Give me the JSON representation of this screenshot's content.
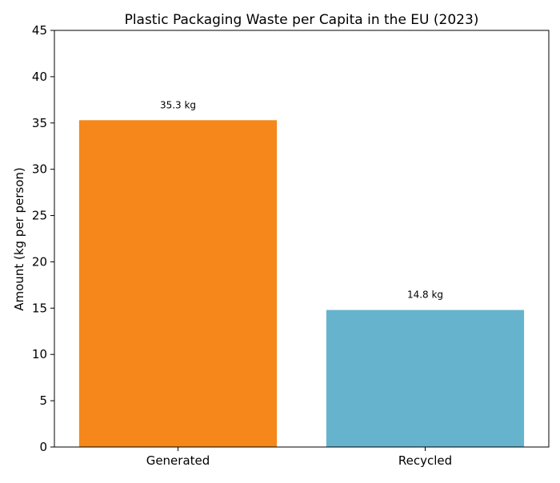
{
  "chart_data": {
    "type": "bar",
    "title": "Plastic Packaging Waste per Capita in the EU (2023)",
    "xlabel": "",
    "ylabel": "Amount (kg per person)",
    "categories": [
      "Generated",
      "Recycled"
    ],
    "values": [
      35.3,
      14.8
    ],
    "data_labels": [
      "35.3 kg",
      "14.8 kg"
    ],
    "colors": [
      "#f5871b",
      "#66b3ce"
    ],
    "ylim": [
      0,
      45
    ],
    "yticks": [
      0,
      5,
      10,
      15,
      20,
      25,
      30,
      35,
      40,
      45
    ],
    "grid": false,
    "legend": "none"
  }
}
